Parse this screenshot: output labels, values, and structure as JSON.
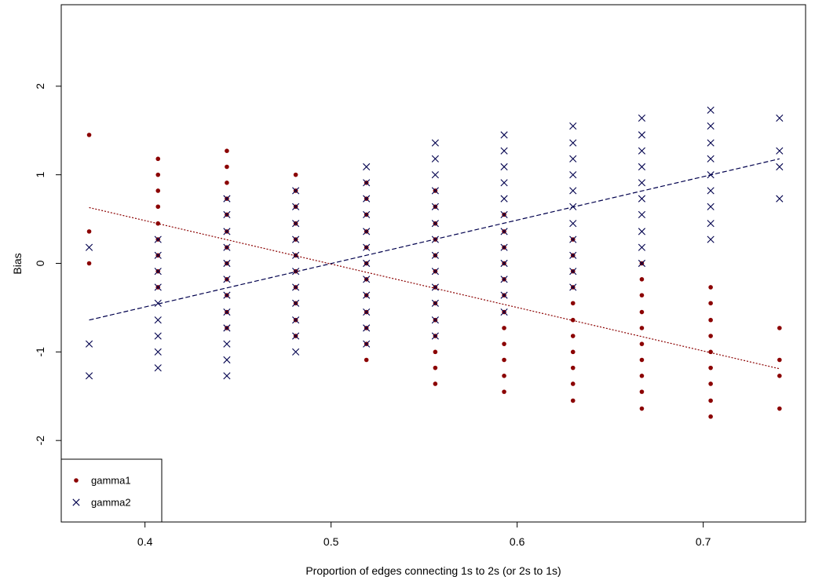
{
  "chart_data": {
    "type": "scatter",
    "title": "",
    "xlabel": "Proportion of edges connecting 1s to 2s (or 2s to 1s)",
    "ylabel": "Bias",
    "xlim": [
      0.355,
      0.755
    ],
    "ylim": [
      -2.92,
      2.92
    ],
    "x_ticks": [
      0.4,
      0.5,
      0.6,
      0.7
    ],
    "x_tick_labels": [
      "0.4",
      "0.5",
      "0.6",
      "0.7"
    ],
    "y_ticks": [
      -2,
      -1,
      0,
      1,
      2
    ],
    "y_tick_labels": [
      "-2",
      "-1",
      "0",
      "1",
      "2"
    ],
    "grid": false,
    "legend_position": "bottom-left",
    "series": [
      {
        "name": "gamma1",
        "marker": "dot",
        "color": "#8b0000",
        "points": [
          [
            0.37,
            1.45
          ],
          [
            0.37,
            0.36
          ],
          [
            0.37,
            0.0
          ],
          [
            0.407,
            1.18
          ],
          [
            0.407,
            1.0
          ],
          [
            0.407,
            0.82
          ],
          [
            0.407,
            0.64
          ],
          [
            0.407,
            0.45
          ],
          [
            0.407,
            0.27
          ],
          [
            0.407,
            0.09
          ],
          [
            0.407,
            -0.09
          ],
          [
            0.407,
            -0.27
          ],
          [
            0.444,
            1.27
          ],
          [
            0.444,
            1.09
          ],
          [
            0.444,
            0.91
          ],
          [
            0.444,
            0.73
          ],
          [
            0.444,
            0.55
          ],
          [
            0.444,
            0.36
          ],
          [
            0.444,
            0.18
          ],
          [
            0.444,
            0.0
          ],
          [
            0.444,
            -0.18
          ],
          [
            0.444,
            -0.36
          ],
          [
            0.444,
            -0.55
          ],
          [
            0.444,
            -0.73
          ],
          [
            0.481,
            1.0
          ],
          [
            0.481,
            0.82
          ],
          [
            0.481,
            0.64
          ],
          [
            0.481,
            0.45
          ],
          [
            0.481,
            0.27
          ],
          [
            0.481,
            0.09
          ],
          [
            0.481,
            -0.09
          ],
          [
            0.481,
            -0.27
          ],
          [
            0.481,
            -0.45
          ],
          [
            0.481,
            -0.64
          ],
          [
            0.481,
            -0.82
          ],
          [
            0.519,
            0.91
          ],
          [
            0.519,
            0.73
          ],
          [
            0.519,
            0.55
          ],
          [
            0.519,
            0.36
          ],
          [
            0.519,
            0.18
          ],
          [
            0.519,
            0.0
          ],
          [
            0.519,
            -0.18
          ],
          [
            0.519,
            -0.36
          ],
          [
            0.519,
            -0.55
          ],
          [
            0.519,
            -0.73
          ],
          [
            0.519,
            -0.91
          ],
          [
            0.519,
            -1.09
          ],
          [
            0.556,
            0.82
          ],
          [
            0.556,
            0.64
          ],
          [
            0.556,
            0.45
          ],
          [
            0.556,
            0.27
          ],
          [
            0.556,
            0.09
          ],
          [
            0.556,
            -0.09
          ],
          [
            0.556,
            -0.27
          ],
          [
            0.556,
            -0.45
          ],
          [
            0.556,
            -0.64
          ],
          [
            0.556,
            -0.82
          ],
          [
            0.556,
            -1.0
          ],
          [
            0.556,
            -1.18
          ],
          [
            0.556,
            -1.36
          ],
          [
            0.593,
            0.55
          ],
          [
            0.593,
            0.36
          ],
          [
            0.593,
            0.18
          ],
          [
            0.593,
            0.0
          ],
          [
            0.593,
            -0.18
          ],
          [
            0.593,
            -0.36
          ],
          [
            0.593,
            -0.55
          ],
          [
            0.593,
            -0.73
          ],
          [
            0.593,
            -0.91
          ],
          [
            0.593,
            -1.09
          ],
          [
            0.593,
            -1.27
          ],
          [
            0.593,
            -1.45
          ],
          [
            0.63,
            0.27
          ],
          [
            0.63,
            0.09
          ],
          [
            0.63,
            -0.09
          ],
          [
            0.63,
            -0.27
          ],
          [
            0.63,
            -0.45
          ],
          [
            0.63,
            -0.64
          ],
          [
            0.63,
            -0.82
          ],
          [
            0.63,
            -1.0
          ],
          [
            0.63,
            -1.18
          ],
          [
            0.63,
            -1.36
          ],
          [
            0.63,
            -1.55
          ],
          [
            0.667,
            0.0
          ],
          [
            0.667,
            -0.18
          ],
          [
            0.667,
            -0.36
          ],
          [
            0.667,
            -0.55
          ],
          [
            0.667,
            -0.73
          ],
          [
            0.667,
            -0.91
          ],
          [
            0.667,
            -1.09
          ],
          [
            0.667,
            -1.27
          ],
          [
            0.667,
            -1.45
          ],
          [
            0.667,
            -1.64
          ],
          [
            0.704,
            -0.27
          ],
          [
            0.704,
            -0.45
          ],
          [
            0.704,
            -0.64
          ],
          [
            0.704,
            -0.82
          ],
          [
            0.704,
            -1.0
          ],
          [
            0.704,
            -1.18
          ],
          [
            0.704,
            -1.36
          ],
          [
            0.704,
            -1.55
          ],
          [
            0.704,
            -1.73
          ],
          [
            0.741,
            -0.73
          ],
          [
            0.741,
            -1.09
          ],
          [
            0.741,
            -1.27
          ],
          [
            0.741,
            -1.64
          ]
        ],
        "trend": [
          [
            0.37,
            0.63
          ],
          [
            0.741,
            -1.19
          ]
        ]
      },
      {
        "name": "gamma2",
        "marker": "cross",
        "color": "#00004d",
        "points": [
          [
            0.37,
            0.18
          ],
          [
            0.37,
            -0.91
          ],
          [
            0.37,
            -1.27
          ],
          [
            0.407,
            0.27
          ],
          [
            0.407,
            0.09
          ],
          [
            0.407,
            -0.09
          ],
          [
            0.407,
            -0.27
          ],
          [
            0.407,
            -0.45
          ],
          [
            0.407,
            -0.64
          ],
          [
            0.407,
            -0.82
          ],
          [
            0.407,
            -1.0
          ],
          [
            0.407,
            -1.18
          ],
          [
            0.444,
            0.73
          ],
          [
            0.444,
            0.55
          ],
          [
            0.444,
            0.36
          ],
          [
            0.444,
            0.18
          ],
          [
            0.444,
            0.0
          ],
          [
            0.444,
            -0.18
          ],
          [
            0.444,
            -0.36
          ],
          [
            0.444,
            -0.55
          ],
          [
            0.444,
            -0.73
          ],
          [
            0.444,
            -0.91
          ],
          [
            0.444,
            -1.09
          ],
          [
            0.444,
            -1.27
          ],
          [
            0.481,
            0.82
          ],
          [
            0.481,
            0.64
          ],
          [
            0.481,
            0.45
          ],
          [
            0.481,
            0.27
          ],
          [
            0.481,
            0.09
          ],
          [
            0.481,
            -0.09
          ],
          [
            0.481,
            -0.27
          ],
          [
            0.481,
            -0.45
          ],
          [
            0.481,
            -0.64
          ],
          [
            0.481,
            -0.82
          ],
          [
            0.481,
            -1.0
          ],
          [
            0.519,
            1.09
          ],
          [
            0.519,
            0.91
          ],
          [
            0.519,
            0.73
          ],
          [
            0.519,
            0.55
          ],
          [
            0.519,
            0.36
          ],
          [
            0.519,
            0.18
          ],
          [
            0.519,
            0.0
          ],
          [
            0.519,
            -0.18
          ],
          [
            0.519,
            -0.36
          ],
          [
            0.519,
            -0.55
          ],
          [
            0.519,
            -0.73
          ],
          [
            0.519,
            -0.91
          ],
          [
            0.556,
            1.36
          ],
          [
            0.556,
            1.18
          ],
          [
            0.556,
            1.0
          ],
          [
            0.556,
            0.82
          ],
          [
            0.556,
            0.64
          ],
          [
            0.556,
            0.45
          ],
          [
            0.556,
            0.27
          ],
          [
            0.556,
            0.09
          ],
          [
            0.556,
            -0.09
          ],
          [
            0.556,
            -0.27
          ],
          [
            0.556,
            -0.45
          ],
          [
            0.556,
            -0.64
          ],
          [
            0.556,
            -0.82
          ],
          [
            0.593,
            1.45
          ],
          [
            0.593,
            1.27
          ],
          [
            0.593,
            1.09
          ],
          [
            0.593,
            0.91
          ],
          [
            0.593,
            0.73
          ],
          [
            0.593,
            0.55
          ],
          [
            0.593,
            0.36
          ],
          [
            0.593,
            0.18
          ],
          [
            0.593,
            0.0
          ],
          [
            0.593,
            -0.18
          ],
          [
            0.593,
            -0.36
          ],
          [
            0.593,
            -0.55
          ],
          [
            0.63,
            1.55
          ],
          [
            0.63,
            1.36
          ],
          [
            0.63,
            1.18
          ],
          [
            0.63,
            1.0
          ],
          [
            0.63,
            0.82
          ],
          [
            0.63,
            0.64
          ],
          [
            0.63,
            0.45
          ],
          [
            0.63,
            0.27
          ],
          [
            0.63,
            0.09
          ],
          [
            0.63,
            -0.09
          ],
          [
            0.63,
            -0.27
          ],
          [
            0.667,
            1.64
          ],
          [
            0.667,
            1.45
          ],
          [
            0.667,
            1.27
          ],
          [
            0.667,
            1.09
          ],
          [
            0.667,
            0.91
          ],
          [
            0.667,
            0.73
          ],
          [
            0.667,
            0.55
          ],
          [
            0.667,
            0.36
          ],
          [
            0.667,
            0.18
          ],
          [
            0.667,
            0.0
          ],
          [
            0.704,
            1.73
          ],
          [
            0.704,
            1.55
          ],
          [
            0.704,
            1.36
          ],
          [
            0.704,
            1.18
          ],
          [
            0.704,
            1.0
          ],
          [
            0.704,
            0.82
          ],
          [
            0.704,
            0.64
          ],
          [
            0.704,
            0.45
          ],
          [
            0.704,
            0.27
          ],
          [
            0.741,
            1.64
          ],
          [
            0.741,
            1.27
          ],
          [
            0.741,
            1.09
          ],
          [
            0.741,
            0.73
          ]
        ],
        "trend": [
          [
            0.37,
            -0.64
          ],
          [
            0.741,
            1.18
          ]
        ]
      }
    ]
  }
}
